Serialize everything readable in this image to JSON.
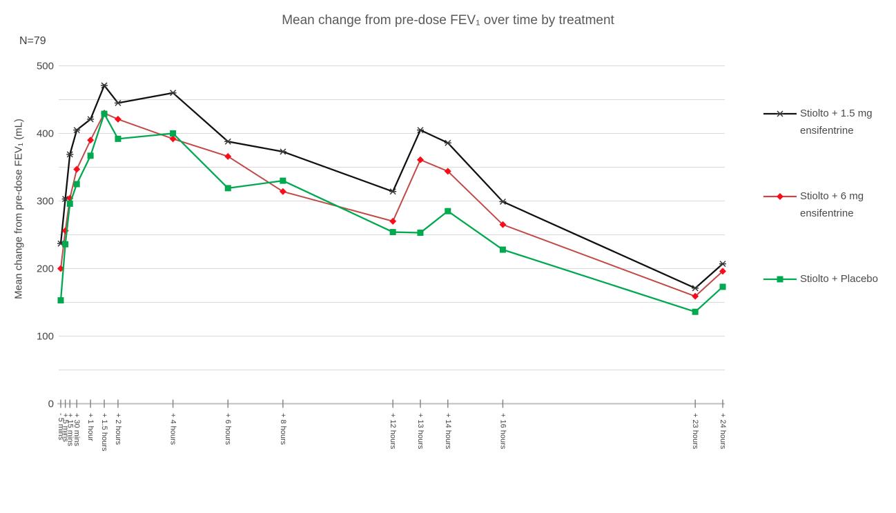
{
  "chart_data": {
    "type": "line",
    "title": "Mean change from pre-dose FEV₁ over time by treatment",
    "ylabel": "Mean change from pre-dose FEV₁ (mL)",
    "n_label": "N=79",
    "ylim": [
      0,
      500
    ],
    "yticks": [
      0,
      100,
      200,
      300,
      400,
      500
    ],
    "gridline_interval": 50,
    "grid_color": "#d9d9d9",
    "axis_color": "#bfbfbf",
    "tick_color": "#7f7f7f",
    "legend_position": "right",
    "x_categories": [
      {
        "label": "- 5 mins",
        "hours": -0.083
      },
      {
        "label": "+ 5 mins",
        "hours": 0.083
      },
      {
        "label": "+ 15 mins",
        "hours": 0.25
      },
      {
        "label": "+ 30 mins",
        "hours": 0.5
      },
      {
        "label": "+ 1 hour",
        "hours": 1
      },
      {
        "label": "+ 1.5 hours",
        "hours": 1.5
      },
      {
        "label": "+ 2 hours",
        "hours": 2
      },
      {
        "label": "+ 4 hours",
        "hours": 4
      },
      {
        "label": "+ 6 hours",
        "hours": 6
      },
      {
        "label": "+ 8 hours",
        "hours": 8
      },
      {
        "label": "+ 12 hours",
        "hours": 12
      },
      {
        "label": "+ 13 hours",
        "hours": 13
      },
      {
        "label": "+ 14 hours",
        "hours": 14
      },
      {
        "label": "+ 16 hours",
        "hours": 16
      },
      {
        "label": "+ 23 hours",
        "hours": 23
      },
      {
        "label": "+ 24 hours",
        "hours": 24
      }
    ],
    "series": [
      {
        "name": "Stiolto + 1.5 mg ensifentrine",
        "legend_lines": [
          "Stiolto + 1.5 mg",
          "ensifentrine"
        ],
        "color": "#111111",
        "marker": "x-star",
        "marker_color": "#363636",
        "values": [
          237,
          303,
          369,
          405,
          421,
          471,
          445,
          460,
          388,
          373,
          314,
          405,
          386,
          299,
          171,
          207
        ]
      },
      {
        "name": "Stiolto + 6 mg ensifentrine",
        "legend_lines": [
          "Stiolto + 6 mg",
          "ensifentrine"
        ],
        "color": "#bf4a47",
        "marker": "diamond",
        "marker_color": "#f90d1b",
        "values": [
          200,
          256,
          304,
          347,
          390,
          430,
          421,
          392,
          366,
          314,
          270,
          361,
          344,
          265,
          159,
          196
        ]
      },
      {
        "name": "Stiolto + Placebo",
        "legend_lines": [
          "Stiolto + Placebo"
        ],
        "color": "#00a94f",
        "marker": "square",
        "marker_color": "#00a94f",
        "values": [
          153,
          236,
          296,
          325,
          367,
          429,
          392,
          400,
          319,
          330,
          254,
          253,
          285,
          228,
          136,
          173
        ]
      }
    ]
  }
}
